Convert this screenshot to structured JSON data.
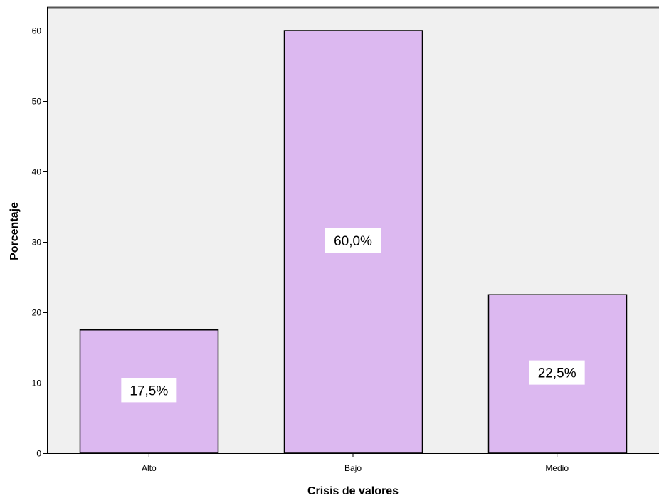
{
  "chart_data": {
    "type": "bar",
    "title": "",
    "xlabel": "Crisis de valores",
    "ylabel": "Porcentaje",
    "categories": [
      "Alto",
      "Bajo",
      "Medio"
    ],
    "values": [
      17.5,
      60.0,
      22.5
    ],
    "data_labels": [
      "17,5%",
      "60,0%",
      "22,5%"
    ],
    "ylim": [
      0,
      65
    ],
    "yticks": [
      0,
      10,
      20,
      30,
      40,
      50,
      60
    ],
    "grid": false,
    "legend": "none",
    "bar_color": "#dcb8f0",
    "plot_background": "#f0f0f0"
  }
}
